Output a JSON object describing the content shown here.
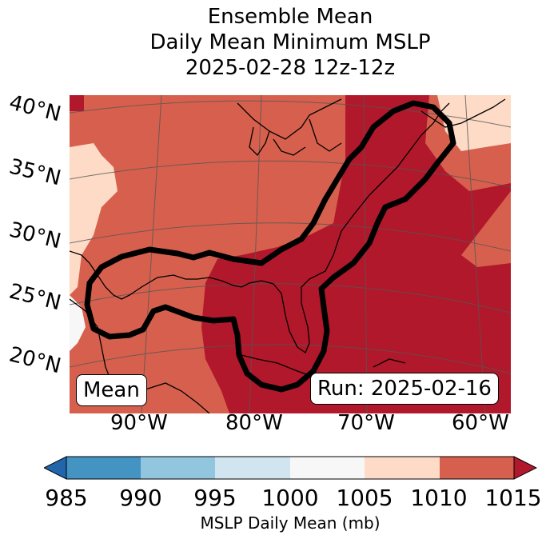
{
  "title": {
    "line1": "Ensemble Mean",
    "line2": "Daily Mean Minimum MSLP",
    "line3": "2025-02-28 12z-12z"
  },
  "map": {
    "lat_labels": [
      "40°N",
      "35°N",
      "30°N",
      "25°N",
      "20°N"
    ],
    "lon_labels": [
      "90°W",
      "80°W",
      "70°W",
      "60°W"
    ],
    "left_box": "Mean",
    "run_box": "Run: 2025-02-16"
  },
  "colorbar": {
    "label": "MSLP Daily Mean (mb)",
    "ticks": [
      "985",
      "990",
      "995",
      "1000",
      "1005",
      "1010",
      "1015"
    ],
    "colors": {
      "below": "#2166ac",
      "c985_990": "#4393c3",
      "c990_995": "#92c5de",
      "c995_1000": "#d1e5f0",
      "c1000_1005": "#f7f7f7",
      "c1005_1010": "#fddbc7",
      "c1010_1015": "#d6604d",
      "above": "#b2182b"
    }
  }
}
